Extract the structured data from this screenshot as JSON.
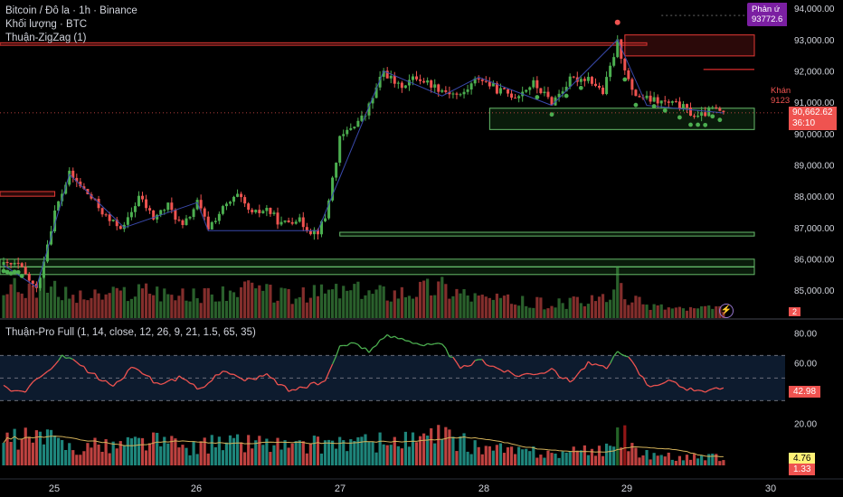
{
  "header": {
    "symbol_title": "Bitcoin / Đô la · 1h · Binance",
    "volume_title": "Khối lượng · BTC",
    "zigzag_title": "Thuận-ZigZag (1)",
    "osc_title": "Thuận-Pro Full (1, 14, close, 12, 26, 9, 21, 1.5, 65, 35)"
  },
  "tags": {
    "alert_line1": "Phản ứ",
    "alert_line2": "93772.6",
    "price_value": "90,662.62",
    "price_timer": "36:10",
    "khan_label": "Khán",
    "khan_value": "9123",
    "vol_badge": "2",
    "osc_value": "42.98",
    "vol_value1": "4.76",
    "vol_value2": "1.33"
  },
  "colors": {
    "up": "#4caf50",
    "down": "#ef5350",
    "zone_green": "#2e7d32",
    "zone_red": "#c62828",
    "alert_purple": "#7b1fa2",
    "osc_bg": "#0d1b2e",
    "ma_line": "#d4b25a"
  },
  "chart_data": {
    "type": "candlestick",
    "price_axis": {
      "ticks": [
        "94,000.00",
        "93,000.00",
        "92,000.00",
        "91,000.00",
        "90,000.00",
        "89,000.00",
        "88,000.00",
        "87,000.00",
        "86,000.00",
        "85,000.00"
      ],
      "range": [
        84600,
        94150
      ]
    },
    "time_axis": {
      "labels": [
        "25",
        "26",
        "27",
        "28",
        "29",
        "30"
      ]
    },
    "oscillator_axis": {
      "ticks": [
        "80.00",
        "60.00",
        "40.00"
      ],
      "range": [
        25,
        85
      ],
      "levels": [
        65,
        50,
        35
      ]
    },
    "volume_axis": {
      "ticks": [
        "20.00"
      ],
      "range": [
        0,
        30
      ]
    },
    "price_waypoints": [
      [
        0,
        85800
      ],
      [
        4,
        85800
      ],
      [
        9,
        85000
      ],
      [
        14,
        87500
      ],
      [
        18,
        88700
      ],
      [
        22,
        88200
      ],
      [
        25,
        87800
      ],
      [
        29,
        87200
      ],
      [
        33,
        87000
      ],
      [
        37,
        88000
      ],
      [
        41,
        87300
      ],
      [
        45,
        87700
      ],
      [
        49,
        87000
      ],
      [
        53,
        87800
      ],
      [
        56,
        87000
      ],
      [
        60,
        87600
      ],
      [
        64,
        88000
      ],
      [
        68,
        87400
      ],
      [
        72,
        87600
      ],
      [
        76,
        87100
      ],
      [
        80,
        87300
      ],
      [
        84,
        86900
      ],
      [
        86,
        86900
      ],
      [
        88,
        87300
      ],
      [
        92,
        89800
      ],
      [
        95,
        90200
      ],
      [
        99,
        90600
      ],
      [
        104,
        92000
      ],
      [
        108,
        91500
      ],
      [
        113,
        91800
      ],
      [
        120,
        91400
      ],
      [
        125,
        91200
      ],
      [
        130,
        91800
      ],
      [
        135,
        91400
      ],
      [
        140,
        91200
      ],
      [
        145,
        91600
      ],
      [
        150,
        91000
      ],
      [
        155,
        91700
      ],
      [
        160,
        91800
      ],
      [
        164,
        91300
      ],
      [
        168,
        92900
      ],
      [
        172,
        91300
      ],
      [
        176,
        91100
      ],
      [
        180,
        91000
      ],
      [
        185,
        90900
      ],
      [
        190,
        90500
      ],
      [
        194,
        90800
      ],
      [
        197,
        90660
      ]
    ],
    "volume_waypoints": [
      [
        0,
        12
      ],
      [
        10,
        14
      ],
      [
        20,
        9
      ],
      [
        30,
        10
      ],
      [
        40,
        13
      ],
      [
        50,
        9
      ],
      [
        60,
        11
      ],
      [
        70,
        12
      ],
      [
        80,
        9
      ],
      [
        90,
        12
      ],
      [
        100,
        11
      ],
      [
        110,
        12
      ],
      [
        120,
        14
      ],
      [
        130,
        9
      ],
      [
        140,
        7
      ],
      [
        150,
        6
      ],
      [
        160,
        7
      ],
      [
        166,
        9
      ],
      [
        168,
        16
      ],
      [
        170,
        9
      ],
      [
        175,
        6
      ],
      [
        180,
        5
      ],
      [
        185,
        4
      ],
      [
        190,
        4
      ],
      [
        197,
        4
      ]
    ],
    "zones": [
      {
        "name": "zone-red-top",
        "color": "red",
        "y": [
          92820,
          92900
        ],
        "x": [
          0,
          176
        ]
      },
      {
        "name": "zone-red-box",
        "color": "red",
        "y": [
          92480,
          93150
        ],
        "x": [
          171,
          206
        ]
      },
      {
        "name": "zone-red-left",
        "color": "red",
        "y": [
          88000,
          88150
        ],
        "x": [
          0,
          14
        ]
      },
      {
        "name": "zone-green-range",
        "color": "green",
        "y": [
          90130,
          90810
        ],
        "x": [
          134,
          206
        ]
      },
      {
        "name": "zone-green-mid",
        "color": "green",
        "y": [
          86730,
          86850
        ],
        "x": [
          93,
          206
        ]
      },
      {
        "name": "zone-green-low1",
        "color": "green",
        "y": [
          85750,
          85990
        ],
        "x": [
          0,
          206
        ]
      },
      {
        "name": "zone-green-low2",
        "color": "green",
        "y": [
          85500,
          85740
        ],
        "x": [
          0,
          206
        ]
      }
    ],
    "current_price": 90662.62
  }
}
